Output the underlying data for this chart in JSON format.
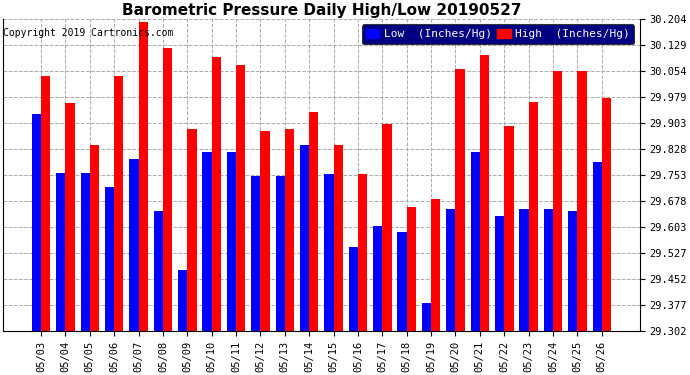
{
  "title": "Barometric Pressure Daily High/Low 20190527",
  "copyright": "Copyright 2019 Cartronics.com",
  "legend_low": "Low  (Inches/Hg)",
  "legend_high": "High  (Inches/Hg)",
  "dates": [
    "05/03",
    "05/04",
    "05/05",
    "05/06",
    "05/07",
    "05/08",
    "05/09",
    "05/10",
    "05/11",
    "05/12",
    "05/13",
    "05/14",
    "05/15",
    "05/16",
    "05/17",
    "05/18",
    "05/19",
    "05/20",
    "05/21",
    "05/22",
    "05/23",
    "05/24",
    "05/25",
    "05/26"
  ],
  "low_values": [
    29.93,
    29.76,
    29.76,
    29.72,
    29.8,
    29.65,
    29.48,
    29.82,
    29.82,
    29.75,
    29.75,
    29.84,
    29.755,
    29.545,
    29.605,
    29.59,
    29.385,
    29.655,
    29.82,
    29.635,
    29.655,
    29.655,
    29.65,
    29.79
  ],
  "high_values": [
    30.04,
    29.96,
    29.84,
    30.04,
    30.195,
    30.12,
    29.885,
    30.095,
    30.07,
    29.88,
    29.885,
    29.935,
    29.84,
    29.755,
    29.9,
    29.66,
    29.685,
    30.06,
    30.1,
    29.895,
    29.965,
    30.055,
    30.055,
    29.975
  ],
  "ylim_min": 29.302,
  "ylim_max": 30.204,
  "yticks": [
    29.302,
    29.377,
    29.452,
    29.527,
    29.603,
    29.678,
    29.753,
    29.828,
    29.903,
    29.979,
    30.054,
    30.129,
    30.204
  ],
  "low_color": "#0000ff",
  "high_color": "#ff0000",
  "bg_color": "#ffffff",
  "plot_bg_color": "#ffffff",
  "grid_color": "#aaaaaa",
  "title_fontsize": 11,
  "tick_fontsize": 7.5,
  "legend_fontsize": 8,
  "copyright_fontsize": 7
}
